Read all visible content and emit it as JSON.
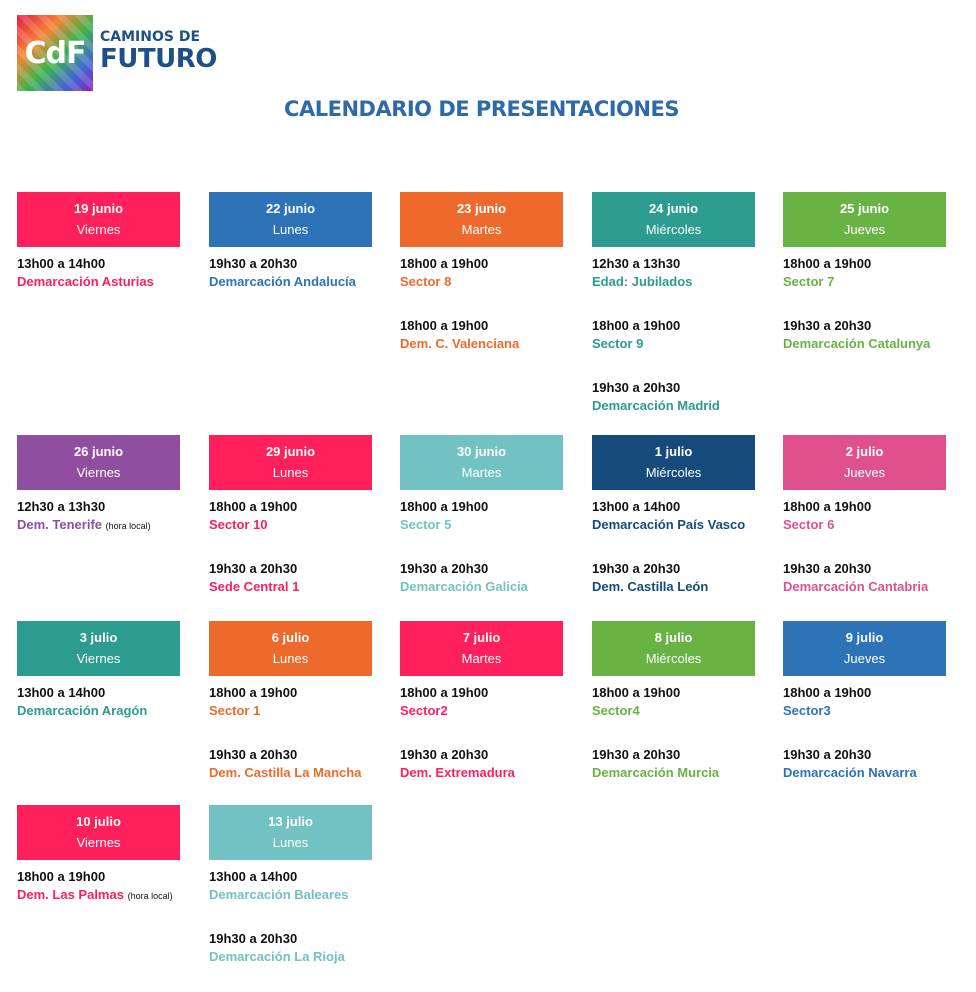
{
  "logo": {
    "mark": "CdF",
    "line1": "CAMINOS DE",
    "line2": "FUTURO"
  },
  "title": "CALENDARIO DE PRESENTACIONES",
  "events": [
    {
      "date": "19 junio",
      "day": "Viernes",
      "color": "#ff1f5a",
      "slots": [
        {
          "time": "13h00 a 14h00",
          "event": "Demarcación Asturias",
          "note": ""
        }
      ]
    },
    {
      "date": "22 junio",
      "day": "Lunes",
      "color": "#2e73b8",
      "slots": [
        {
          "time": "19h30 a 20h30",
          "event": "Demarcación Andalucía",
          "note": ""
        }
      ]
    },
    {
      "date": "23 junio",
      "day": "Martes",
      "color": "#ee6a2c",
      "slots": [
        {
          "time": "18h00 a 19h00",
          "event": "Sector 8",
          "note": ""
        },
        {
          "time": "18h00 a 19h00",
          "event": "Dem. C. Valenciana",
          "note": ""
        }
      ]
    },
    {
      "date": "24 junio",
      "day": "Miércoles",
      "color": "#2b9c8f",
      "slots": [
        {
          "time": "12h30 a 13h30",
          "event": "Edad: Jubilados",
          "note": ""
        },
        {
          "time": "18h00 a 19h00",
          "event": "Sector 9",
          "note": ""
        },
        {
          "time": "19h30 a 20h30",
          "event": "Demarcación Madrid",
          "note": ""
        }
      ]
    },
    {
      "date": "25 junio",
      "day": "Jueves",
      "color": "#69b344",
      "slots": [
        {
          "time": "18h00 a 19h00",
          "event": "Sector 7",
          "note": ""
        },
        {
          "time": "19h30 a 20h30",
          "event": "Demarcación Catalunya",
          "note": ""
        }
      ]
    },
    {
      "date": "26 junio",
      "day": "Viernes",
      "color": "#8f4ea0",
      "slots": [
        {
          "time": "12h30 a 13h30",
          "event": "Dem. Tenerife",
          "note": "(hora local)"
        }
      ]
    },
    {
      "date": "29 junio",
      "day": "Lunes",
      "color": "#ff1f5a",
      "slots": [
        {
          "time": "18h00 a 19h00",
          "event": "Sector 10",
          "note": ""
        },
        {
          "time": "19h30 a 20h30",
          "event": "Sede Central 1",
          "note": ""
        }
      ]
    },
    {
      "date": "30 junio",
      "day": "Martes",
      "color": "#72c2c4",
      "slots": [
        {
          "time": "18h00 a 19h00",
          "event": "Sector 5",
          "note": ""
        },
        {
          "time": "19h30 a 20h30",
          "event": "Demarcación Galicia",
          "note": ""
        }
      ]
    },
    {
      "date": "1 julio",
      "day": "Miércoles",
      "color": "#174a7c",
      "slots": [
        {
          "time": "13h00 a 14h00",
          "event": "Demarcación País Vasco",
          "note": ""
        },
        {
          "time": "19h30 a 20h30",
          "event": "Dem. Castilla León",
          "note": ""
        }
      ]
    },
    {
      "date": "2 julio",
      "day": "Jueves",
      "color": "#e0508c",
      "slots": [
        {
          "time": "18h00 a 19h00",
          "event": "Sector 6",
          "note": ""
        },
        {
          "time": "19h30 a 20h30",
          "event": "Demarcación Cantabria",
          "note": ""
        }
      ]
    },
    {
      "date": "3 julio",
      "day": "Viernes",
      "color": "#2b9c8f",
      "slots": [
        {
          "time": "13h00 a 14h00",
          "event": "Demarcación Aragón",
          "note": ""
        }
      ]
    },
    {
      "date": "6 julio",
      "day": "Lunes",
      "color": "#ee6a2c",
      "slots": [
        {
          "time": "18h00 a 19h00",
          "event": "Sector 1",
          "note": ""
        },
        {
          "time": "19h30 a 20h30",
          "event": "Dem. Castilla La Mancha",
          "note": ""
        }
      ]
    },
    {
      "date": "7 julio",
      "day": "Martes",
      "color": "#ff1f5a",
      "slots": [
        {
          "time": "18h00 a 19h00",
          "event": "Sector2",
          "note": ""
        },
        {
          "time": "19h30 a 20h30",
          "event": "Dem. Extremadura",
          "note": ""
        }
      ]
    },
    {
      "date": "8 julio",
      "day": "Miércoles",
      "color": "#69b344",
      "slots": [
        {
          "time": "18h00 a 19h00",
          "event": "Sector4",
          "note": ""
        },
        {
          "time": "19h30 a 20h30",
          "event": "Demarcación Murcia",
          "note": ""
        }
      ]
    },
    {
      "date": "9 julio",
      "day": "Jueves",
      "color": "#2e73b8",
      "slots": [
        {
          "time": "18h00 a 19h00",
          "event": "Sector3",
          "note": ""
        },
        {
          "time": "19h30 a 20h30",
          "event": "Demarcación Navarra",
          "note": ""
        }
      ]
    },
    {
      "date": "10 julio",
      "day": "Viernes",
      "color": "#ff1f5a",
      "slots": [
        {
          "time": "18h00 a 19h00",
          "event": "Dem. Las Palmas",
          "note": "(hora local)"
        }
      ]
    },
    {
      "date": "13 julio",
      "day": "Lunes",
      "color": "#72c2c4",
      "slots": [
        {
          "time": "13h00 a 14h00",
          "event": "Demarcación Baleares",
          "note": ""
        },
        {
          "time": "19h30 a 20h30",
          "event": "Demarcación La Rioja",
          "note": ""
        }
      ]
    }
  ]
}
